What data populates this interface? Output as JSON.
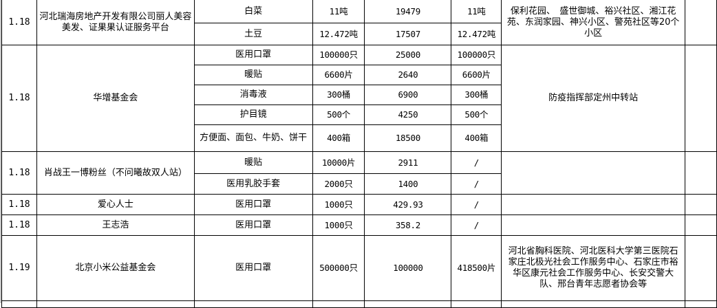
{
  "rows": [
    {
      "date": "1.18",
      "donor": "河北瑞海房地产开发有限公司丽人美容美发、证果果认证服务平台",
      "items": [
        {
          "name": "白菜",
          "qty": "11吨",
          "value": "19479",
          "received": "11吨"
        },
        {
          "name": "土豆",
          "qty": "12.472吨",
          "value": "17507",
          "received": "12.472吨"
        }
      ],
      "recipient": "保利花园、　盛世御城、裕兴社区、湘江花苑、东润家园、神兴小区、警苑社区等20个小区"
    },
    {
      "date": "1.18",
      "donor": "华增基金会",
      "items": [
        {
          "name": "医用口罩",
          "qty": "100000只",
          "value": "25000",
          "received": "100000只"
        },
        {
          "name": "暖贴",
          "qty": "6600片",
          "value": "2640",
          "received": "6600片"
        },
        {
          "name": "消毒液",
          "qty": "300桶",
          "value": "6900",
          "received": "300桶"
        },
        {
          "name": "护目镜",
          "qty": "500个",
          "value": "4250",
          "received": "500个"
        },
        {
          "name": "方便面、面包、牛奶、饼干",
          "qty": "400箱",
          "value": "18500",
          "received": "400箱"
        }
      ],
      "recipient": "防疫指挥部定州中转站"
    },
    {
      "date": "1.18",
      "donor": "肖战王一博粉丝（不问曦故双人站）",
      "items": [
        {
          "name": "暖贴",
          "qty": "10000片",
          "value": "2911",
          "received": "/"
        },
        {
          "name": "医用乳胶手套",
          "qty": "2000只",
          "value": "1400",
          "received": "/"
        }
      ],
      "recipient": ""
    },
    {
      "date": "1.18",
      "donor": "爱心人士",
      "items": [
        {
          "name": "医用口罩",
          "qty": "1000只",
          "value": "429.93",
          "received": "/"
        }
      ],
      "recipient": ""
    },
    {
      "date": "1.18",
      "donor": "王志浩",
      "items": [
        {
          "name": "医用口罩",
          "qty": "1000只",
          "value": "358.2",
          "received": "/"
        }
      ],
      "recipient": ""
    },
    {
      "date": "1.19",
      "donor": "北京小米公益基金会",
      "items": [
        {
          "name": "医用口罩",
          "qty": "500000只",
          "value": "100000",
          "received": "418500片"
        }
      ],
      "recipient": "河北省胸科医院、河北医科大学第三医院石家庄北极光社会工作服务中心、石家庄市裕华区康元社会工作服务中心、长安交警大队、邢台青年志愿者协会等"
    }
  ]
}
